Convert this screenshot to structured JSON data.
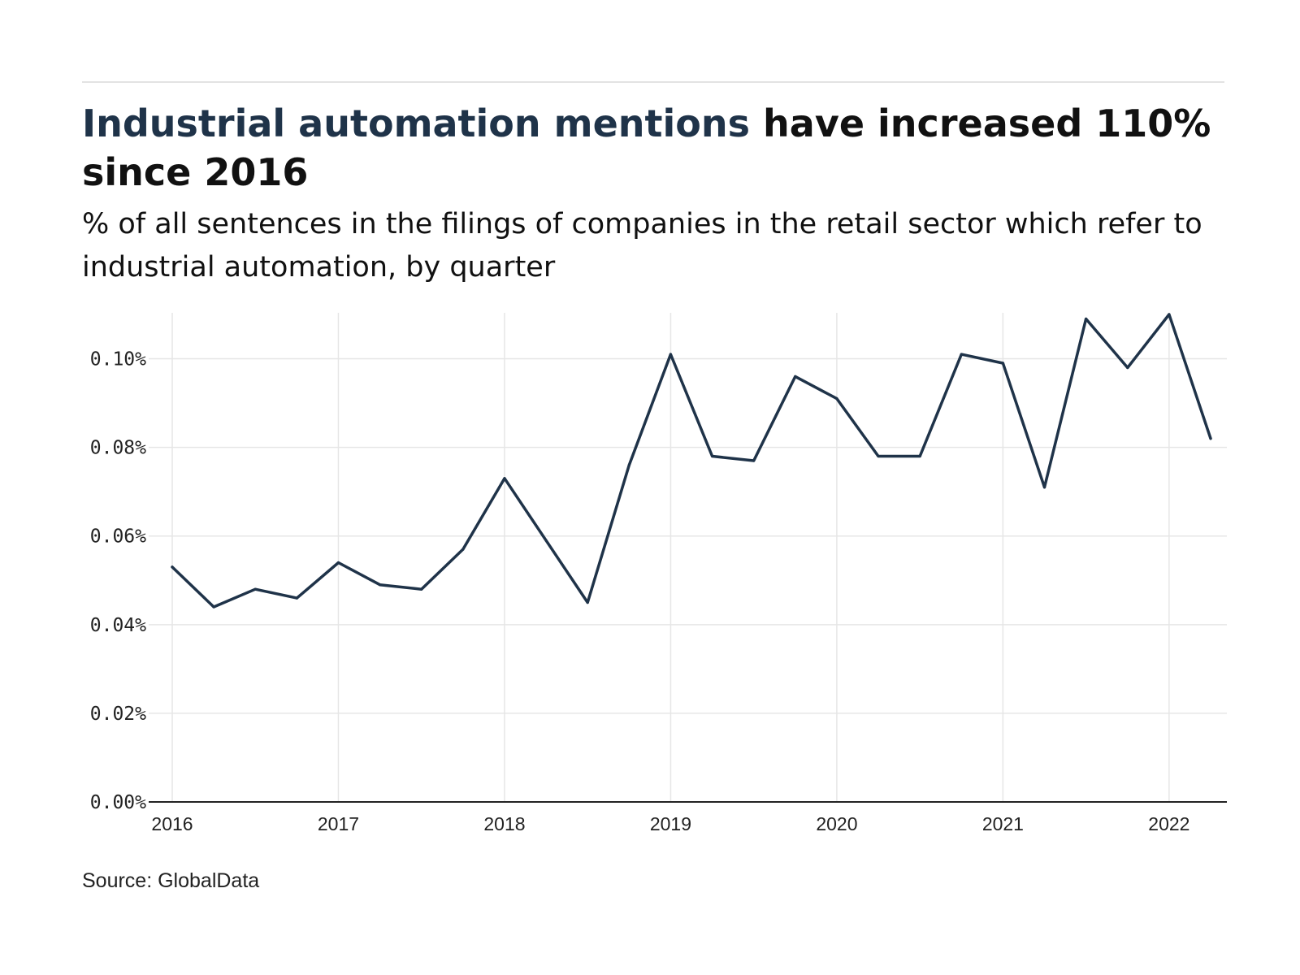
{
  "header": {
    "title_highlight": "Industrial automation mentions",
    "title_rest": " have increased 110% since 2016",
    "subtitle": "% of all sentences in the filings of companies in the retail sector which refer to industrial automation, by quarter"
  },
  "footer": {
    "source": "Source: GlobalData"
  },
  "colors": {
    "line": "#1f3349",
    "grid": "#e6e6e6",
    "axis": "#222222",
    "title_highlight": "#1f3349"
  },
  "chart_data": {
    "type": "line",
    "title": "Industrial automation mentions have increased 110% since 2016",
    "subtitle": "% of all sentences in the filings of companies in the retail sector which refer to industrial automation, by quarter",
    "xlabel": "",
    "ylabel": "",
    "xlim": [
      2016,
      2022.25
    ],
    "ylim": [
      0,
      0.11
    ],
    "x_ticks": [
      2016,
      2017,
      2018,
      2019,
      2020,
      2021,
      2022
    ],
    "x_tick_labels": [
      "2016",
      "2017",
      "2018",
      "2019",
      "2020",
      "2021",
      "2022"
    ],
    "y_ticks": [
      0,
      0.02,
      0.04,
      0.06,
      0.08,
      0.1
    ],
    "y_tick_labels": [
      "0.00%",
      "0.02%",
      "0.04%",
      "0.06%",
      "0.08%",
      "0.10%"
    ],
    "grid": true,
    "legend": "none",
    "series": [
      {
        "x": [
          2016,
          2016.25,
          2016.5,
          2016.75,
          2017,
          2017.25,
          2017.5,
          2017.75,
          2018,
          2018.25,
          2018.5,
          2018.75,
          2019,
          2019.25,
          2019.5,
          2019.75,
          2020,
          2020.25,
          2020.5,
          2020.75,
          2021,
          2021.25,
          2021.5,
          2021.75,
          2022,
          2022.25
        ],
        "values": [
          0.053,
          0.044,
          0.048,
          0.046,
          0.054,
          0.049,
          0.048,
          0.057,
          0.073,
          0.059,
          0.045,
          0.076,
          0.101,
          0.078,
          0.077,
          0.096,
          0.091,
          0.078,
          0.078,
          0.101,
          0.099,
          0.071,
          0.109,
          0.098,
          0.11,
          0.082
        ]
      }
    ]
  }
}
